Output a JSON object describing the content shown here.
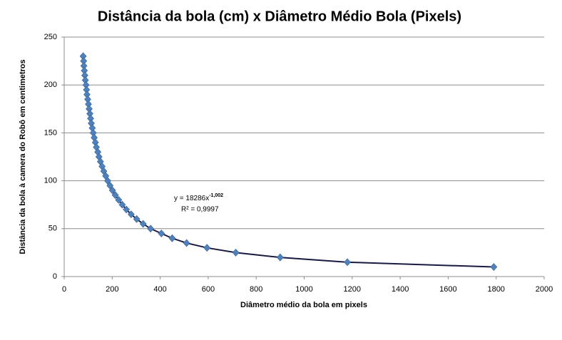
{
  "chart_data": {
    "type": "scatter",
    "title": "Distância da bola (cm) x Diâmetro Médio Bola (Pixels)",
    "x_label": "Diâmetro médio da bola em pixels",
    "y_label": "Distância da bola à camera do Robô em centimetros",
    "x": [
      79,
      81,
      82,
      84,
      86,
      88,
      91,
      93,
      95,
      98,
      101,
      104,
      107,
      110,
      113,
      117,
      121,
      125,
      130,
      134,
      140,
      145,
      151,
      158,
      165,
      173,
      181,
      191,
      201,
      213,
      227,
      242,
      259,
      279,
      302,
      329,
      360,
      405,
      450,
      510,
      595,
      715,
      900,
      1180,
      1790
    ],
    "values": [
      230,
      225,
      220,
      215,
      210,
      205,
      200,
      195,
      190,
      185,
      180,
      175,
      170,
      165,
      160,
      155,
      150,
      145,
      140,
      135,
      130,
      125,
      120,
      115,
      110,
      105,
      100,
      95,
      90,
      85,
      80,
      75,
      70,
      65,
      60,
      55,
      50,
      45,
      40,
      35,
      30,
      25,
      20,
      15,
      10
    ],
    "color": "#4f81bd",
    "line_color": "#1a1a40",
    "xlim": [
      0,
      2000
    ],
    "xticks": [
      0,
      200,
      400,
      600,
      800,
      1000,
      1200,
      1400,
      1600,
      1800,
      2000
    ],
    "ylim": [
      0,
      250
    ],
    "yticks": [
      0,
      50,
      100,
      150,
      200,
      250
    ],
    "grid": true,
    "trendline": {
      "equation": "y = 18286x",
      "exponent": "-1,002",
      "r_squared": "R² = 0,9997"
    }
  }
}
